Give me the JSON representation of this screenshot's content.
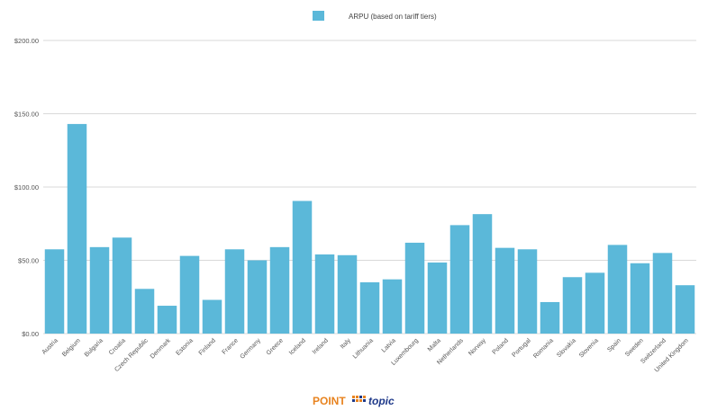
{
  "chart_data": {
    "type": "bar",
    "categories": [
      "Austria",
      "Belgium",
      "Bulgaria",
      "Croatia",
      "Czech Republic",
      "Denmark",
      "Estonia",
      "Finland",
      "France",
      "Germany",
      "Greece",
      "Iceland",
      "Ireland",
      "Italy",
      "Lithuania",
      "Latvia",
      "Luxembourg",
      "Malta",
      "Netherlands",
      "Norway",
      "Poland",
      "Portugal",
      "Romania",
      "Slovakia",
      "Slovenia",
      "Spain",
      "Sweden",
      "Switzerland",
      "United Kingdom"
    ],
    "series": [
      {
        "name": "ARPU (based on tariff tiers)",
        "values": [
          57.5,
          143,
          59,
          65.5,
          30.5,
          19,
          53,
          23,
          57.5,
          50,
          59,
          90.5,
          54,
          53.5,
          35,
          37,
          62,
          48.5,
          74,
          81.5,
          58.5,
          57.5,
          21.5,
          38.5,
          41.5,
          60.5,
          48,
          55,
          33
        ]
      }
    ],
    "ylim": [
      0,
      200
    ],
    "yticks": [
      "$0.00",
      "$50.00",
      "$100.00",
      "$150.00",
      "$200.00"
    ],
    "ytick_values": [
      0,
      50,
      100,
      150,
      200
    ],
    "grid": true,
    "legend_position": "top-center",
    "colors": {
      "bar": "#5bb8d9",
      "grid": "#d9d9d9"
    }
  },
  "logo": {
    "part1": "POINT",
    "part2": "topic",
    "color1": "#e8831f",
    "color2": "#1f3a8a"
  }
}
